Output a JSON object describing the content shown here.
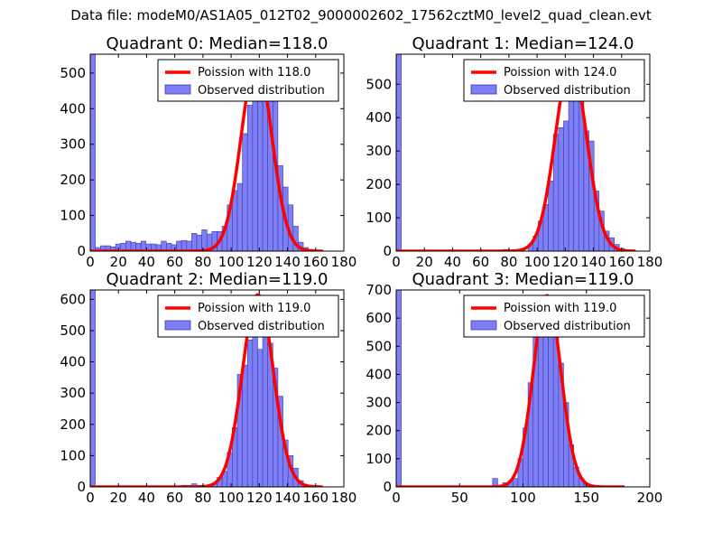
{
  "figure": {
    "suptitle": "Data file: modeM0/AS1A05_012T02_9000002602_17562cztM0_level2_quad_clean.evt"
  },
  "colors": {
    "hist_fill": "#7f7ff5",
    "hist_edge": "#3a3ab0",
    "poisson": "#ff0000"
  },
  "chart_data": [
    {
      "type": "bar",
      "title": "Quadrant 0: Median=118.0",
      "xlim": [
        0,
        180
      ],
      "ylim": [
        0,
        553
      ],
      "xticks": [
        0,
        20,
        40,
        60,
        80,
        100,
        120,
        140,
        160,
        180
      ],
      "xtick_labels": [
        "0",
        "20",
        "40",
        "60",
        "80",
        "100",
        "120",
        "140",
        "160",
        "180"
      ],
      "yticks": [
        0,
        100,
        200,
        300,
        400,
        500
      ],
      "ytick_labels": [
        "0",
        "100",
        "200",
        "300",
        "400",
        "500"
      ],
      "bin_width": 3.6,
      "bins": [
        [
          0,
          553
        ],
        [
          3.6,
          10
        ],
        [
          7.2,
          15
        ],
        [
          10.8,
          15
        ],
        [
          14.4,
          12
        ],
        [
          18,
          20
        ],
        [
          21.6,
          22
        ],
        [
          25.2,
          28
        ],
        [
          28.8,
          25
        ],
        [
          32.4,
          22
        ],
        [
          36,
          28
        ],
        [
          39.6,
          20
        ],
        [
          43.2,
          20
        ],
        [
          46.8,
          18
        ],
        [
          50.4,
          28
        ],
        [
          54,
          22
        ],
        [
          57.6,
          18
        ],
        [
          61.2,
          28
        ],
        [
          64.8,
          30
        ],
        [
          68.4,
          28
        ],
        [
          72,
          50
        ],
        [
          75.6,
          45
        ],
        [
          79.2,
          60
        ],
        [
          82.8,
          48
        ],
        [
          86.4,
          55
        ],
        [
          90,
          55
        ],
        [
          93.6,
          70
        ],
        [
          97.2,
          130
        ],
        [
          100.8,
          170
        ],
        [
          104.4,
          190
        ],
        [
          108,
          330
        ],
        [
          111.6,
          410
        ],
        [
          115.2,
          430
        ],
        [
          118.8,
          450
        ],
        [
          122.4,
          520
        ],
        [
          126,
          430
        ],
        [
          129.6,
          440
        ],
        [
          133.2,
          240
        ],
        [
          136.8,
          180
        ],
        [
          140.4,
          130
        ],
        [
          144,
          70
        ],
        [
          147.6,
          25
        ],
        [
          151.2,
          10
        ],
        [
          154.8,
          5
        ],
        [
          158.4,
          2
        ],
        [
          162,
          1
        ]
      ],
      "curve": {
        "label": "Poission with 118.0",
        "mean": 118.0,
        "peak": 535,
        "sigma": 10.86,
        "x_range": [
          0,
          165
        ]
      },
      "legend": {
        "location": "top-right",
        "entries": [
          "Poission with 118.0",
          "Observed distribution"
        ]
      }
    },
    {
      "type": "bar",
      "title": "Quadrant 1: Median=124.0",
      "xlim": [
        0,
        180
      ],
      "ylim": [
        0,
        590
      ],
      "xticks": [
        0,
        20,
        40,
        60,
        80,
        100,
        120,
        140,
        160,
        180
      ],
      "xtick_labels": [
        "0",
        "20",
        "40",
        "60",
        "80",
        "100",
        "120",
        "140",
        "160",
        "180"
      ],
      "yticks": [
        0,
        100,
        200,
        300,
        400,
        500
      ],
      "ytick_labels": [
        "0",
        "100",
        "200",
        "300",
        "400",
        "500"
      ],
      "bin_width": 3.6,
      "bins": [
        [
          0,
          590
        ],
        [
          75.6,
          5
        ],
        [
          86.4,
          5
        ],
        [
          93.6,
          20
        ],
        [
          97.2,
          45
        ],
        [
          100.8,
          90
        ],
        [
          104.4,
          140
        ],
        [
          108,
          210
        ],
        [
          111.6,
          350
        ],
        [
          115.2,
          370
        ],
        [
          118.8,
          390
        ],
        [
          122.4,
          480
        ],
        [
          126,
          530
        ],
        [
          129.6,
          460
        ],
        [
          133.2,
          360
        ],
        [
          136.8,
          330
        ],
        [
          140.4,
          180
        ],
        [
          144,
          120
        ],
        [
          147.6,
          60
        ],
        [
          151.2,
          40
        ],
        [
          154.8,
          20
        ],
        [
          158.4,
          8
        ],
        [
          162,
          3
        ]
      ],
      "curve": {
        "label": "Poission with 124.0",
        "mean": 124.0,
        "peak": 565,
        "sigma": 11.14,
        "x_range": [
          0,
          170
        ]
      },
      "legend": {
        "location": "top-right",
        "entries": [
          "Poission with 124.0",
          "Observed distribution"
        ]
      }
    },
    {
      "type": "bar",
      "title": "Quadrant 2: Median=119.0",
      "xlim": [
        0,
        180
      ],
      "ylim": [
        0,
        630
      ],
      "xticks": [
        0,
        20,
        40,
        60,
        80,
        100,
        120,
        140,
        160,
        180
      ],
      "xtick_labels": [
        "0",
        "20",
        "40",
        "60",
        "80",
        "100",
        "120",
        "140",
        "160",
        "180"
      ],
      "yticks": [
        0,
        100,
        200,
        300,
        400,
        500,
        600
      ],
      "ytick_labels": [
        "0",
        "100",
        "200",
        "300",
        "400",
        "500",
        "600"
      ],
      "bin_width": 3.6,
      "bins": [
        [
          0,
          630
        ],
        [
          64.8,
          5
        ],
        [
          68.4,
          5
        ],
        [
          72,
          10
        ],
        [
          75.6,
          5
        ],
        [
          86.4,
          10
        ],
        [
          90,
          30
        ],
        [
          93.6,
          50
        ],
        [
          97.2,
          110
        ],
        [
          100.8,
          190
        ],
        [
          104.4,
          360
        ],
        [
          108,
          390
        ],
        [
          111.6,
          470
        ],
        [
          115.2,
          490
        ],
        [
          118.8,
          440
        ],
        [
          122.4,
          520
        ],
        [
          126,
          460
        ],
        [
          129.6,
          380
        ],
        [
          133.2,
          290
        ],
        [
          136.8,
          150
        ],
        [
          140.4,
          100
        ],
        [
          144,
          60
        ],
        [
          147.6,
          20
        ],
        [
          151.2,
          6
        ]
      ],
      "curve": {
        "label": "Poission with 119.0",
        "mean": 119.0,
        "peak": 615,
        "sigma": 10.91,
        "x_range": [
          0,
          165
        ]
      },
      "legend": {
        "location": "top-right",
        "entries": [
          "Poission with 119.0",
          "Observed distribution"
        ]
      }
    },
    {
      "type": "bar",
      "title": "Quadrant 3: Median=119.0",
      "xlim": [
        0,
        200
      ],
      "ylim": [
        0,
        700
      ],
      "xticks": [
        0,
        50,
        100,
        150,
        200
      ],
      "xtick_labels": [
        "0",
        "50",
        "100",
        "150",
        "200"
      ],
      "yticks": [
        0,
        100,
        200,
        300,
        400,
        500,
        600,
        700
      ],
      "ytick_labels": [
        "0",
        "100",
        "200",
        "300",
        "400",
        "500",
        "600",
        "700"
      ],
      "bin_width": 4,
      "bins": [
        [
          0,
          700
        ],
        [
          76,
          30
        ],
        [
          84,
          15
        ],
        [
          88,
          20
        ],
        [
          92,
          30
        ],
        [
          96,
          100
        ],
        [
          100,
          210
        ],
        [
          104,
          370
        ],
        [
          108,
          530
        ],
        [
          112,
          600
        ],
        [
          116,
          640
        ],
        [
          120,
          590
        ],
        [
          124,
          540
        ],
        [
          128,
          440
        ],
        [
          132,
          300
        ],
        [
          136,
          150
        ],
        [
          140,
          70
        ],
        [
          144,
          30
        ],
        [
          148,
          10
        ],
        [
          152,
          4
        ]
      ],
      "curve": {
        "label": "Poission with 119.0",
        "mean": 119.0,
        "peak": 680,
        "sigma": 10.91,
        "x_range": [
          0,
          180
        ]
      },
      "legend": {
        "location": "top-right",
        "entries": [
          "Poission with 119.0",
          "Observed distribution"
        ]
      }
    }
  ]
}
